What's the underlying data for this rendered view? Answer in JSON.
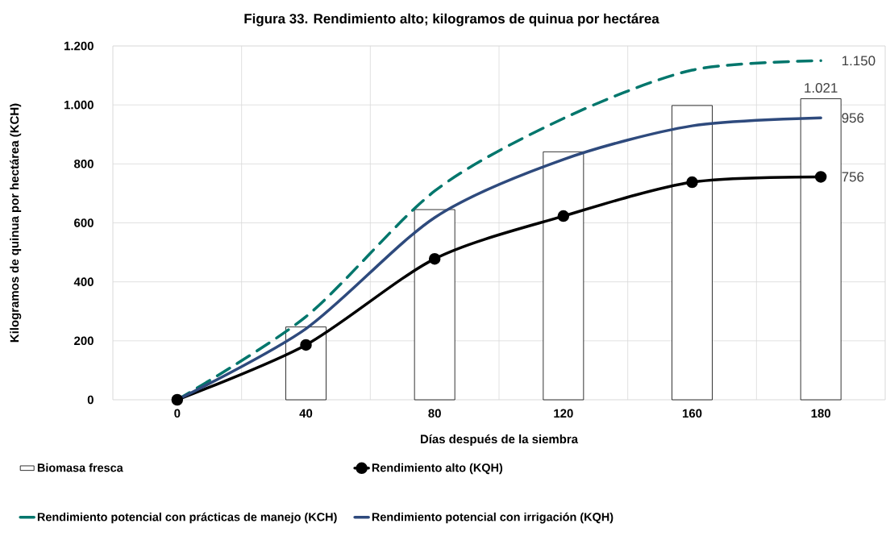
{
  "chart_data": {
    "type": "bar",
    "title": "Figura 33. Rendimiento alto; kilogramos de quinua por hectárea",
    "xlabel": "Días después de la siembra",
    "ylabel": "Kilogramos de quinua por hectárea (KCH)",
    "categories": [
      "0",
      "40",
      "80",
      "120",
      "160",
      "180"
    ],
    "ylim": [
      0,
      1200
    ],
    "yticks": [
      0,
      200,
      400,
      600,
      800,
      {
        "value": 1000,
        "label": "1.000"
      },
      {
        "value": 1200,
        "label": "1.200"
      }
    ],
    "grid": true,
    "legend": "bottom",
    "series": [
      {
        "name": "Biomasa fresca",
        "color": "#ffffff",
        "values": [
          null,
          247,
          645,
          841,
          998,
          1021
        ],
        "value_labels": [
          null,
          null,
          null,
          null,
          null,
          "1.021"
        ]
      },
      {
        "name": "Rendimiento alto (KQH)",
        "type": "line",
        "color": "#000000",
        "marker": "circle",
        "line_style": "solid",
        "values": [
          0,
          186,
          478,
          623,
          738,
          756
        ],
        "value_labels": [
          null,
          null,
          null,
          null,
          null,
          "756"
        ]
      },
      {
        "name": "Rendimiento potencial con prácticas de manejo (KCH)",
        "type": "line",
        "color": "#00766c",
        "marker": "none",
        "line_style": "dashed",
        "values": [
          0,
          282,
          708,
          954,
          1118,
          1150
        ],
        "value_labels": [
          null,
          null,
          null,
          null,
          null,
          "1.150"
        ]
      },
      {
        "name": "Rendimiento potencial con irrigación (KQH)",
        "type": "line",
        "color": "#2e4a7d",
        "marker": "none",
        "line_style": "solid",
        "values": [
          0,
          241,
          618,
          815,
          929,
          956
        ],
        "value_labels": [
          null,
          null,
          null,
          null,
          null,
          "956"
        ]
      }
    ]
  }
}
